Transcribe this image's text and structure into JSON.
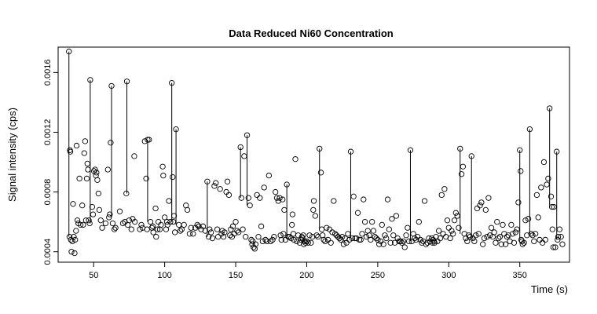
{
  "chart_data": {
    "type": "scatter",
    "title": "Data Reduced Ni60 Concentration",
    "xlabel": "Time (s)",
    "ylabel": "Signal intensity (cps)",
    "xlim": [
      25,
      385
    ],
    "ylim": [
      0.00033,
      0.00177
    ],
    "x_ticks": [
      50,
      100,
      150,
      200,
      250,
      300,
      350
    ],
    "x_tick_labels": [
      "50",
      "100",
      "150",
      "200",
      "250",
      "300",
      "350"
    ],
    "y_ticks": [
      0.0004,
      0.0008,
      0.0012,
      0.0016
    ],
    "y_tick_labels": [
      "0.0004",
      "0.0008",
      "0.0012",
      "0.0016"
    ],
    "grid": false,
    "legend": "none",
    "marker": "open-circle",
    "color": "#000000",
    "points": [
      [
        32.6,
        0.00174
      ],
      [
        33.0,
        0.0005
      ],
      [
        33.3,
        0.00108
      ],
      [
        33.6,
        0.00107
      ],
      [
        34.0,
        0.00048
      ],
      [
        34.4,
        0.0004
      ],
      [
        35.0,
        0.00047
      ],
      [
        35.5,
        0.00072
      ],
      [
        36.0,
        0.0005
      ],
      [
        36.6,
        0.00039
      ],
      [
        37.0,
        0.00048
      ],
      [
        37.6,
        0.00054
      ],
      [
        38.0,
        0.00111
      ],
      [
        38.6,
        0.00061
      ],
      [
        39.2,
        0.00059
      ],
      [
        40.0,
        0.00089
      ],
      [
        40.8,
        0.00058
      ],
      [
        42.0,
        0.00071
      ],
      [
        42.6,
        0.00058
      ],
      [
        43.4,
        0.00106
      ],
      [
        44.0,
        0.00114
      ],
      [
        44.6,
        0.00061
      ],
      [
        45.2,
        0.00089
      ],
      [
        45.6,
        0.00099
      ],
      [
        46.0,
        0.00095
      ],
      [
        46.6,
        0.00061
      ],
      [
        47.2,
        0.00059
      ],
      [
        47.6,
        0.00155
      ],
      [
        49.0,
        0.0007
      ],
      [
        49.6,
        0.00065
      ],
      [
        50.2,
        0.00094
      ],
      [
        51.0,
        0.00095
      ],
      [
        51.6,
        0.00091
      ],
      [
        52.0,
        0.00093
      ],
      [
        52.6,
        0.00088
      ],
      [
        53.4,
        0.00079
      ],
      [
        54.0,
        0.00068
      ],
      [
        55.0,
        0.00061
      ],
      [
        56.0,
        0.00056
      ],
      [
        58.4,
        0.00059
      ],
      [
        60.0,
        0.00095
      ],
      [
        60.8,
        0.00063
      ],
      [
        61.4,
        0.00065
      ],
      [
        62.0,
        0.00113
      ],
      [
        62.6,
        0.00151
      ],
      [
        63.4,
        0.00059
      ],
      [
        64.6,
        0.00055
      ],
      [
        65.4,
        0.00056
      ],
      [
        68.4,
        0.00067
      ],
      [
        70.6,
        0.00059
      ],
      [
        72.0,
        0.0006
      ],
      [
        73.0,
        0.00079
      ],
      [
        73.4,
        0.00154
      ],
      [
        74.0,
        0.00058
      ],
      [
        75.0,
        0.00061
      ],
      [
        76.6,
        0.00055
      ],
      [
        77.4,
        0.00062
      ],
      [
        78.6,
        0.00104
      ],
      [
        79.0,
        0.0006
      ],
      [
        82.6,
        0.00055
      ],
      [
        83.6,
        0.00058
      ],
      [
        84.4,
        0.00056
      ],
      [
        86.0,
        0.00114
      ],
      [
        87.0,
        0.00089
      ],
      [
        87.6,
        0.00055
      ],
      [
        88.0,
        0.00115
      ],
      [
        89.0,
        0.00115
      ],
      [
        90.0,
        0.0006
      ],
      [
        91.0,
        0.00056
      ],
      [
        91.6,
        0.00057
      ],
      [
        92.0,
        0.00053
      ],
      [
        93.6,
        0.00069
      ],
      [
        94.0,
        0.0005
      ],
      [
        95.0,
        0.00055
      ],
      [
        95.6,
        0.0006
      ],
      [
        96.6,
        0.00055
      ],
      [
        97.4,
        0.00058
      ],
      [
        98.6,
        0.00097
      ],
      [
        99.0,
        0.00091
      ],
      [
        100.0,
        0.00063
      ],
      [
        101.0,
        0.00055
      ],
      [
        101.6,
        0.0006
      ],
      [
        102.0,
        0.00058
      ],
      [
        103.0,
        0.00074
      ],
      [
        104.0,
        0.0006
      ],
      [
        105.0,
        0.00153
      ],
      [
        105.6,
        0.0009
      ],
      [
        106.0,
        0.0006
      ],
      [
        106.6,
        0.00064
      ],
      [
        107.2,
        0.00053
      ],
      [
        108.0,
        0.00122
      ],
      [
        110.0,
        0.00058
      ],
      [
        111.0,
        0.00054
      ],
      [
        112.0,
        0.00055
      ],
      [
        113.6,
        0.00058
      ],
      [
        115.0,
        0.00071
      ],
      [
        116.0,
        0.00068
      ],
      [
        117.6,
        0.00052
      ],
      [
        118.6,
        0.00056
      ],
      [
        120.0,
        0.00052
      ],
      [
        121.6,
        0.00056
      ],
      [
        123.0,
        0.00058
      ],
      [
        124.0,
        0.00057
      ],
      [
        125.6,
        0.00055
      ],
      [
        127.0,
        0.00057
      ],
      [
        128.6,
        0.00054
      ],
      [
        130.0,
        0.00087
      ],
      [
        131.0,
        0.0005
      ],
      [
        131.6,
        0.00055
      ],
      [
        132.6,
        0.00053
      ],
      [
        133.6,
        0.00049
      ],
      [
        135.0,
        0.00084
      ],
      [
        136.0,
        0.00086
      ],
      [
        137.0,
        0.00055
      ],
      [
        137.6,
        0.0005
      ],
      [
        139.0,
        0.00082
      ],
      [
        140.0,
        0.00052
      ],
      [
        140.6,
        0.00054
      ],
      [
        141.4,
        0.0005
      ],
      [
        142.2,
        0.00053
      ],
      [
        143.4,
        0.0008
      ],
      [
        144.2,
        0.00087
      ],
      [
        145.2,
        0.00078
      ],
      [
        146.0,
        0.00051
      ],
      [
        146.6,
        0.00055
      ],
      [
        147.4,
        0.0005
      ],
      [
        148.0,
        0.00057
      ],
      [
        149.0,
        0.00052
      ],
      [
        150.0,
        0.0006
      ],
      [
        151.0,
        0.00054
      ],
      [
        152.0,
        0.00053
      ],
      [
        153.4,
        0.0011
      ],
      [
        154.0,
        0.00076
      ],
      [
        155.0,
        0.00055
      ],
      [
        156.0,
        0.00104
      ],
      [
        157.0,
        0.0005
      ],
      [
        158.0,
        0.00118
      ],
      [
        159.0,
        0.00076
      ],
      [
        160.0,
        0.00071
      ],
      [
        161.0,
        0.00048
      ],
      [
        161.6,
        0.00045
      ],
      [
        162.0,
        0.00047
      ],
      [
        162.6,
        0.00043
      ],
      [
        163.4,
        0.00042
      ],
      [
        164.0,
        0.00045
      ],
      [
        165.0,
        0.00078
      ],
      [
        166.0,
        0.0005
      ],
      [
        167.0,
        0.00076
      ],
      [
        168.0,
        0.00057
      ],
      [
        169.0,
        0.00047
      ],
      [
        170.0,
        0.00083
      ],
      [
        171.0,
        0.00048
      ],
      [
        172.0,
        0.00047
      ],
      [
        173.4,
        0.00091
      ],
      [
        174.6,
        0.00047
      ],
      [
        176.0,
        0.00048
      ],
      [
        177.0,
        0.0005
      ],
      [
        178.0,
        0.0008
      ],
      [
        179.0,
        0.00076
      ],
      [
        180.0,
        0.00074
      ],
      [
        181.0,
        0.00076
      ],
      [
        181.6,
        0.00051
      ],
      [
        182.2,
        0.00048
      ],
      [
        183.0,
        0.00075
      ],
      [
        183.6,
        0.00052
      ],
      [
        184.2,
        0.00068
      ],
      [
        185.0,
        0.00048
      ],
      [
        186.0,
        0.00085
      ],
      [
        187.0,
        0.0005
      ],
      [
        188.0,
        0.0005
      ],
      [
        189.0,
        0.00049
      ],
      [
        189.6,
        0.00058
      ],
      [
        190.0,
        0.00065
      ],
      [
        190.6,
        0.00052
      ],
      [
        191.0,
        0.00048
      ],
      [
        192.0,
        0.00102
      ],
      [
        193.0,
        0.00047
      ],
      [
        194.0,
        0.00051
      ],
      [
        195.0,
        0.00046
      ],
      [
        196.0,
        0.00048
      ],
      [
        196.6,
        0.0005
      ],
      [
        197.0,
        0.00049
      ],
      [
        197.6,
        0.00051
      ],
      [
        198.0,
        0.00045
      ],
      [
        198.6,
        0.00047
      ],
      [
        199.2,
        0.00046
      ],
      [
        200.0,
        0.00047
      ],
      [
        201.0,
        0.00046
      ],
      [
        202.0,
        0.00051
      ],
      [
        203.0,
        0.00046
      ],
      [
        204.0,
        0.0005
      ],
      [
        204.6,
        0.00068
      ],
      [
        205.0,
        0.00074
      ],
      [
        206.0,
        0.00064
      ],
      [
        207.0,
        0.00051
      ],
      [
        208.0,
        0.0005
      ],
      [
        209.0,
        0.00109
      ],
      [
        210.0,
        0.00093
      ],
      [
        210.6,
        0.00055
      ],
      [
        211.2,
        0.00051
      ],
      [
        212.0,
        0.00048
      ],
      [
        213.0,
        0.00047
      ],
      [
        214.0,
        0.00056
      ],
      [
        215.0,
        0.00048
      ],
      [
        216.0,
        0.00055
      ],
      [
        217.0,
        0.00046
      ],
      [
        218.0,
        0.00053
      ],
      [
        219.0,
        0.00074
      ],
      [
        220.0,
        0.00052
      ],
      [
        221.0,
        0.00051
      ],
      [
        222.0,
        0.0005
      ],
      [
        223.0,
        0.00049
      ],
      [
        224.0,
        0.00048
      ],
      [
        225.0,
        0.0005
      ],
      [
        226.0,
        0.00045
      ],
      [
        227.0,
        0.00049
      ],
      [
        228.0,
        0.00046
      ],
      [
        229.0,
        0.00052
      ],
      [
        230.0,
        0.00048
      ],
      [
        231.0,
        0.00107
      ],
      [
        232.0,
        0.00049
      ],
      [
        233.0,
        0.00077
      ],
      [
        234.0,
        0.00049
      ],
      [
        235.0,
        0.00049
      ],
      [
        236.0,
        0.00066
      ],
      [
        237.0,
        0.00048
      ],
      [
        238.0,
        0.00048
      ],
      [
        239.0,
        0.00052
      ],
      [
        240.0,
        0.00075
      ],
      [
        241.0,
        0.0006
      ],
      [
        242.0,
        0.0005
      ],
      [
        243.0,
        0.00054
      ],
      [
        244.0,
        0.00051
      ],
      [
        245.0,
        0.00048
      ],
      [
        246.0,
        0.0006
      ],
      [
        247.0,
        0.00054
      ],
      [
        248.0,
        0.0005
      ],
      [
        249.0,
        0.00049
      ],
      [
        250.0,
        0.00048
      ],
      [
        251.0,
        0.00045
      ],
      [
        252.0,
        0.00047
      ],
      [
        253.0,
        0.00058
      ],
      [
        254.0,
        0.00045
      ],
      [
        255.0,
        0.00051
      ],
      [
        256.0,
        0.00049
      ],
      [
        257.0,
        0.00075
      ],
      [
        258.0,
        0.00055
      ],
      [
        259.0,
        0.00046
      ],
      [
        260.0,
        0.00062
      ],
      [
        261.0,
        0.00051
      ],
      [
        262.0,
        0.00046
      ],
      [
        263.0,
        0.00064
      ],
      [
        264.0,
        0.00049
      ],
      [
        265.0,
        0.00047
      ],
      [
        266.0,
        0.00047
      ],
      [
        267.0,
        0.00046
      ],
      [
        268.0,
        0.00047
      ],
      [
        269.0,
        0.00043
      ],
      [
        270.0,
        0.00051
      ],
      [
        271.0,
        0.00056
      ],
      [
        272.0,
        0.00047
      ],
      [
        273.0,
        0.00108
      ],
      [
        274.0,
        0.00047
      ],
      [
        275.0,
        0.00052
      ],
      [
        276.0,
        0.00049
      ],
      [
        277.0,
        0.00048
      ],
      [
        278.0,
        0.0005
      ],
      [
        279.0,
        0.0006
      ],
      [
        280.0,
        0.00048
      ],
      [
        281.0,
        0.00046
      ],
      [
        282.0,
        0.00047
      ],
      [
        283.0,
        0.00074
      ],
      [
        284.0,
        0.00045
      ],
      [
        285.0,
        0.00046
      ],
      [
        286.0,
        0.00049
      ],
      [
        287.0,
        0.00047
      ],
      [
        288.0,
        0.00049
      ],
      [
        288.6,
        0.00046
      ],
      [
        289.0,
        0.00048
      ],
      [
        289.6,
        0.00047
      ],
      [
        290.0,
        0.00046
      ],
      [
        291.0,
        0.0005
      ],
      [
        292.0,
        0.00047
      ],
      [
        293.0,
        0.00054
      ],
      [
        294.0,
        0.00049
      ],
      [
        295.0,
        0.00078
      ],
      [
        296.0,
        0.00052
      ],
      [
        297.0,
        0.00082
      ],
      [
        298.0,
        0.0005
      ],
      [
        299.0,
        0.00061
      ],
      [
        300.0,
        0.00056
      ],
      [
        301.0,
        0.00049
      ],
      [
        302.0,
        0.00054
      ],
      [
        303.0,
        0.00052
      ],
      [
        304.0,
        0.00061
      ],
      [
        305.0,
        0.00066
      ],
      [
        306.0,
        0.00064
      ],
      [
        307.0,
        0.00056
      ],
      [
        308.0,
        0.00109
      ],
      [
        309.0,
        0.00092
      ],
      [
        310.0,
        0.00097
      ],
      [
        311.0,
        0.00052
      ],
      [
        312.0,
        0.00049
      ],
      [
        313.0,
        0.00047
      ],
      [
        314.0,
        0.00051
      ],
      [
        315.0,
        0.0005
      ],
      [
        316.0,
        0.00104
      ],
      [
        317.0,
        0.00049
      ],
      [
        318.0,
        0.00047
      ],
      [
        319.0,
        0.00051
      ],
      [
        320.0,
        0.00069
      ],
      [
        321.0,
        0.00052
      ],
      [
        322.0,
        0.00071
      ],
      [
        323.0,
        0.00073
      ],
      [
        324.0,
        0.00045
      ],
      [
        325.0,
        0.00049
      ],
      [
        326.0,
        0.00068
      ],
      [
        327.0,
        0.0005
      ],
      [
        328.0,
        0.00076
      ],
      [
        329.0,
        0.00051
      ],
      [
        330.0,
        0.00056
      ],
      [
        331.0,
        0.0005
      ],
      [
        332.0,
        0.00053
      ],
      [
        333.0,
        0.00046
      ],
      [
        334.0,
        0.0006
      ],
      [
        335.0,
        0.00049
      ],
      [
        336.0,
        0.0005
      ],
      [
        337.0,
        0.00045
      ],
      [
        338.0,
        0.00058
      ],
      [
        339.0,
        0.00052
      ],
      [
        340.0,
        0.00045
      ],
      [
        341.0,
        0.0005
      ],
      [
        342.0,
        0.00051
      ],
      [
        343.0,
        0.00047
      ],
      [
        344.0,
        0.00058
      ],
      [
        345.0,
        0.00052
      ],
      [
        346.0,
        0.00046
      ],
      [
        347.0,
        0.00053
      ],
      [
        348.0,
        0.00055
      ],
      [
        349.0,
        0.00073
      ],
      [
        350.0,
        0.00108
      ],
      [
        350.6,
        0.00094
      ],
      [
        351.0,
        0.00048
      ],
      [
        351.6,
        0.00047
      ],
      [
        352.0,
        0.00045
      ],
      [
        353.0,
        0.00046
      ],
      [
        354.0,
        0.00061
      ],
      [
        355.0,
        0.00051
      ],
      [
        356.0,
        0.00062
      ],
      [
        357.0,
        0.00122
      ],
      [
        358.0,
        0.00052
      ],
      [
        359.0,
        0.00051
      ],
      [
        360.0,
        0.00047
      ],
      [
        361.0,
        0.00052
      ],
      [
        362.0,
        0.00078
      ],
      [
        363.0,
        0.00063
      ],
      [
        364.0,
        0.00048
      ],
      [
        365.0,
        0.00083
      ],
      [
        366.0,
        0.00046
      ],
      [
        367.0,
        0.001
      ],
      [
        368.0,
        0.00048
      ],
      [
        369.0,
        0.00085
      ],
      [
        370.0,
        0.00089
      ],
      [
        371.0,
        0.00136
      ],
      [
        372.0,
        0.00077
      ],
      [
        372.6,
        0.0007
      ],
      [
        373.0,
        0.00055
      ],
      [
        373.6,
        0.00043
      ],
      [
        374.0,
        0.0007
      ],
      [
        375.0,
        0.00043
      ],
      [
        376.0,
        0.00107
      ],
      [
        376.6,
        0.00048
      ],
      [
        377.0,
        0.0005
      ],
      [
        378.0,
        0.00055
      ],
      [
        379.0,
        0.0005
      ],
      [
        380.0,
        0.00045
      ]
    ],
    "segments": [
      [
        32.6,
        0.0005,
        0.00174
      ],
      [
        47.6,
        0.00059,
        0.00155
      ],
      [
        62.6,
        0.00063,
        0.00151
      ],
      [
        73.4,
        0.00079,
        0.00154
      ],
      [
        88.0,
        0.0006,
        0.00115
      ],
      [
        105.0,
        0.0006,
        0.00153
      ],
      [
        108.0,
        0.00058,
        0.00122
      ],
      [
        130.0,
        0.0005,
        0.00087
      ],
      [
        153.4,
        0.00076,
        0.0011
      ],
      [
        158.0,
        0.00071,
        0.00118
      ],
      [
        186.0,
        0.0005,
        0.00085
      ],
      [
        209.0,
        0.00055,
        0.00109
      ],
      [
        231.0,
        0.00049,
        0.00107
      ],
      [
        273.0,
        0.00047,
        0.00108
      ],
      [
        308.0,
        0.00052,
        0.00109
      ],
      [
        316.0,
        0.00049,
        0.00104
      ],
      [
        350.0,
        0.00048,
        0.00108
      ],
      [
        357.0,
        0.00052,
        0.00122
      ],
      [
        371.0,
        0.0007,
        0.00136
      ],
      [
        376.0,
        0.00048,
        0.00107
      ]
    ]
  }
}
